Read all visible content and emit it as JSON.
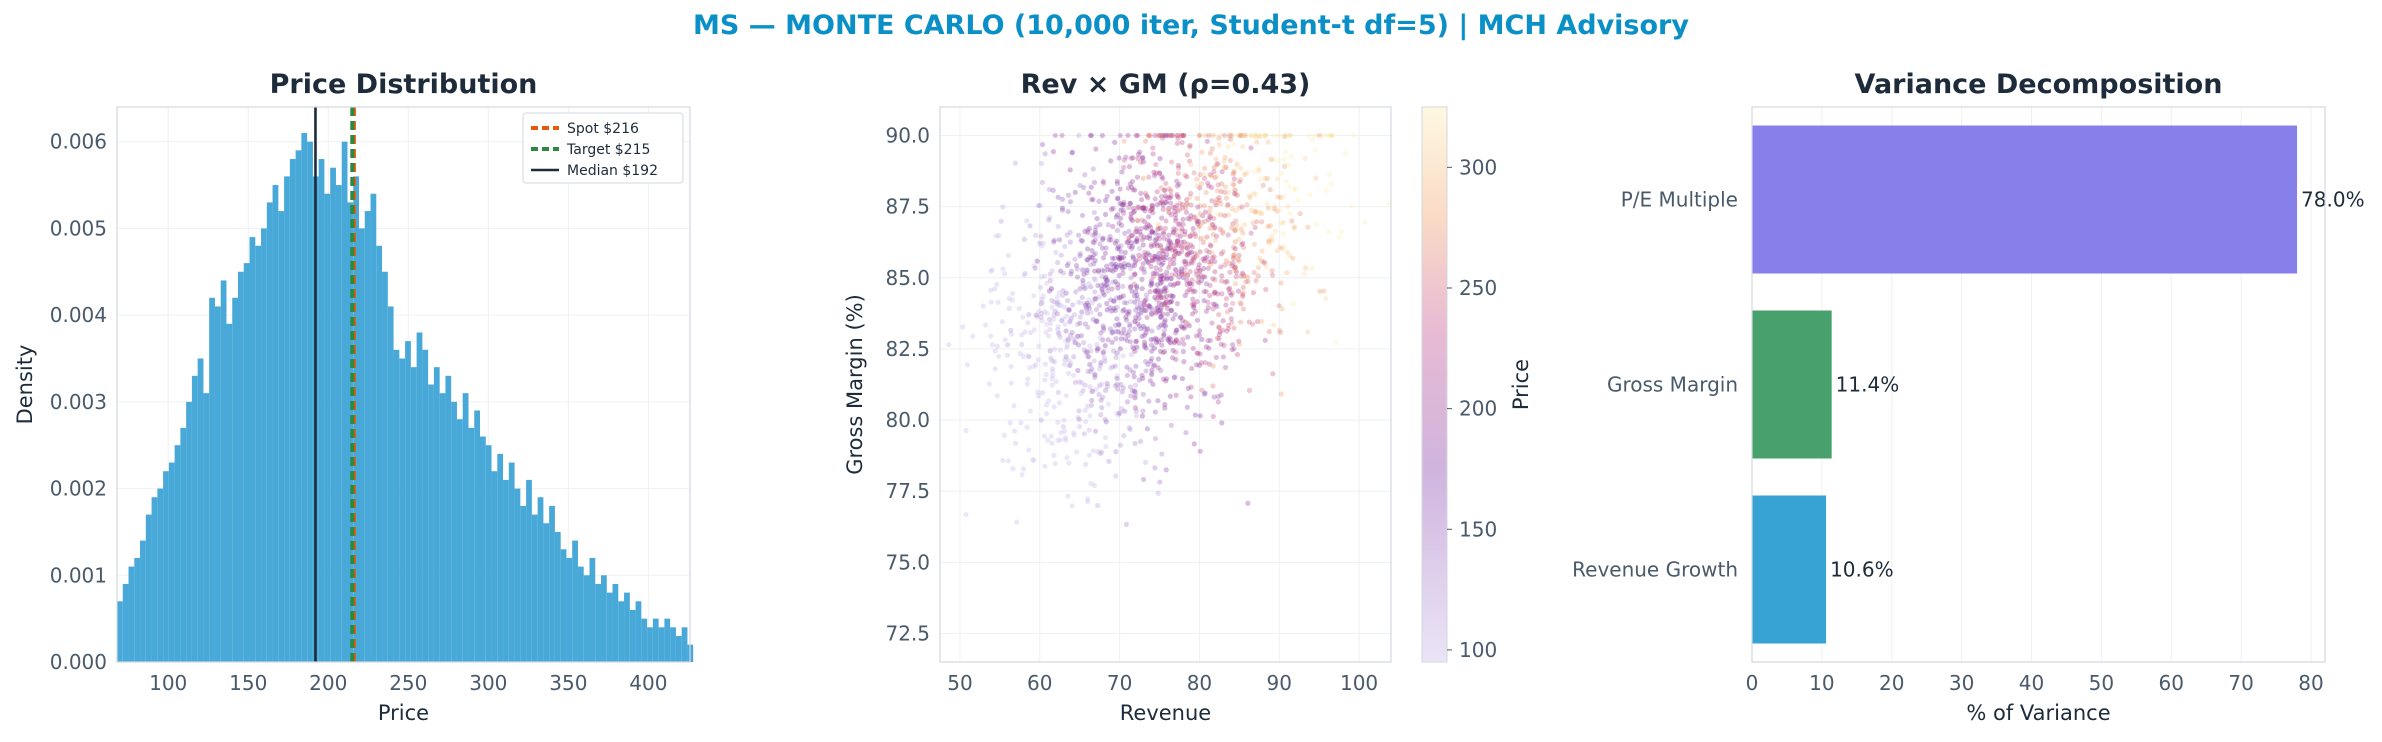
{
  "suptitle": "MS — MONTE CARLO (10,000 iter, Student-t df=5) | MCH Advisory",
  "chart_data": [
    {
      "type": "bar",
      "subtype": "histogram",
      "title": "Price Distribution",
      "xlabel": "Price",
      "ylabel": "Density",
      "xlim": [
        68,
        426
      ],
      "ylim": [
        0,
        0.0064
      ],
      "xticks": [
        100,
        150,
        200,
        250,
        300,
        350,
        400
      ],
      "yticks": [
        0,
        0.001,
        0.002,
        0.003,
        0.004,
        0.005,
        0.006
      ],
      "ytick_labels": [
        "0.000",
        "0.001",
        "0.002",
        "0.003",
        "0.004",
        "0.005",
        "0.006"
      ],
      "grid": true,
      "bar_color": "#48a9d8",
      "bin_start": 68,
      "bin_width": 3.6,
      "values": [
        0.0007,
        0.0009,
        0.0011,
        0.0012,
        0.0014,
        0.0017,
        0.0019,
        0.002,
        0.0022,
        0.0023,
        0.0025,
        0.0027,
        0.003,
        0.0033,
        0.0035,
        0.0031,
        0.0042,
        0.0041,
        0.0044,
        0.0039,
        0.0042,
        0.0045,
        0.0046,
        0.0049,
        0.0048,
        0.005,
        0.0053,
        0.0055,
        0.0052,
        0.0056,
        0.0058,
        0.0059,
        0.0061,
        0.006,
        0.0056,
        0.0058,
        0.0054,
        0.0057,
        0.0055,
        0.006,
        0.0053,
        0.0056,
        0.005,
        0.0052,
        0.0054,
        0.0048,
        0.0045,
        0.0041,
        0.0036,
        0.0035,
        0.0037,
        0.0034,
        0.0038,
        0.0036,
        0.0032,
        0.0034,
        0.0031,
        0.0033,
        0.003,
        0.0028,
        0.0031,
        0.0027,
        0.0029,
        0.0026,
        0.0025,
        0.0022,
        0.0024,
        0.0021,
        0.0023,
        0.002,
        0.0018,
        0.0021,
        0.0017,
        0.0019,
        0.0016,
        0.0018,
        0.0015,
        0.0013,
        0.0012,
        0.0014,
        0.0011,
        0.001,
        0.0012,
        0.0009,
        0.001,
        0.0008,
        0.0009,
        0.0007,
        0.0008,
        0.0006,
        0.0007,
        0.0005,
        0.0004,
        0.0005,
        0.0004,
        0.0005,
        0.0004,
        0.0003,
        0.0004,
        0.0002
      ],
      "vlines": [
        {
          "label": "Spot $216",
          "x": 216,
          "color": "#e8590c",
          "style": "dashed"
        },
        {
          "label": "Target $215",
          "x": 215,
          "color": "#2b8a3e",
          "style": "dashed"
        },
        {
          "label": "Median $192",
          "x": 192,
          "color": "#1d2b3a",
          "style": "solid"
        }
      ],
      "legend": "top-right"
    },
    {
      "type": "scatter",
      "title": "Rev × GM (ρ=0.43)",
      "xlabel": "Revenue",
      "ylabel": "Gross Margin (%)",
      "xlim": [
        47.5,
        104
      ],
      "ylim": [
        71.5,
        91
      ],
      "xticks": [
        50,
        60,
        70,
        80,
        90,
        100
      ],
      "yticks": [
        72.5,
        75.0,
        77.5,
        80.0,
        82.5,
        85.0,
        87.5,
        90.0
      ],
      "ytick_labels": [
        "72.5",
        "75.0",
        "77.5",
        "80.0",
        "82.5",
        "85.0",
        "87.5",
        "90.0"
      ],
      "grid": true,
      "colorbar": {
        "label": "Price",
        "range": [
          95,
          325
        ],
        "ticks": [
          100,
          150,
          200,
          250,
          300
        ],
        "colormap": "plasma-light"
      },
      "points": {
        "n": 1800,
        "x_mean": 74,
        "x_sd": 9,
        "y_mean": 85,
        "y_sd": 2.9,
        "y_cap": 90.0,
        "rho": 0.43
      }
    },
    {
      "type": "bar",
      "orientation": "horizontal",
      "title": "Variance Decomposition",
      "xlabel": "% of Variance",
      "ylabel": "",
      "xlim": [
        0,
        82
      ],
      "xticks": [
        0,
        10,
        20,
        30,
        40,
        50,
        60,
        70,
        80
      ],
      "grid": true,
      "categories": [
        "P/E Multiple",
        "Gross Margin",
        "Revenue Growth"
      ],
      "values": [
        78.0,
        11.4,
        10.6
      ],
      "value_labels": [
        "78.0%",
        "11.4%",
        "10.6%"
      ],
      "colors": [
        "#8880ea",
        "#48a06c",
        "#36a3d4"
      ]
    }
  ]
}
